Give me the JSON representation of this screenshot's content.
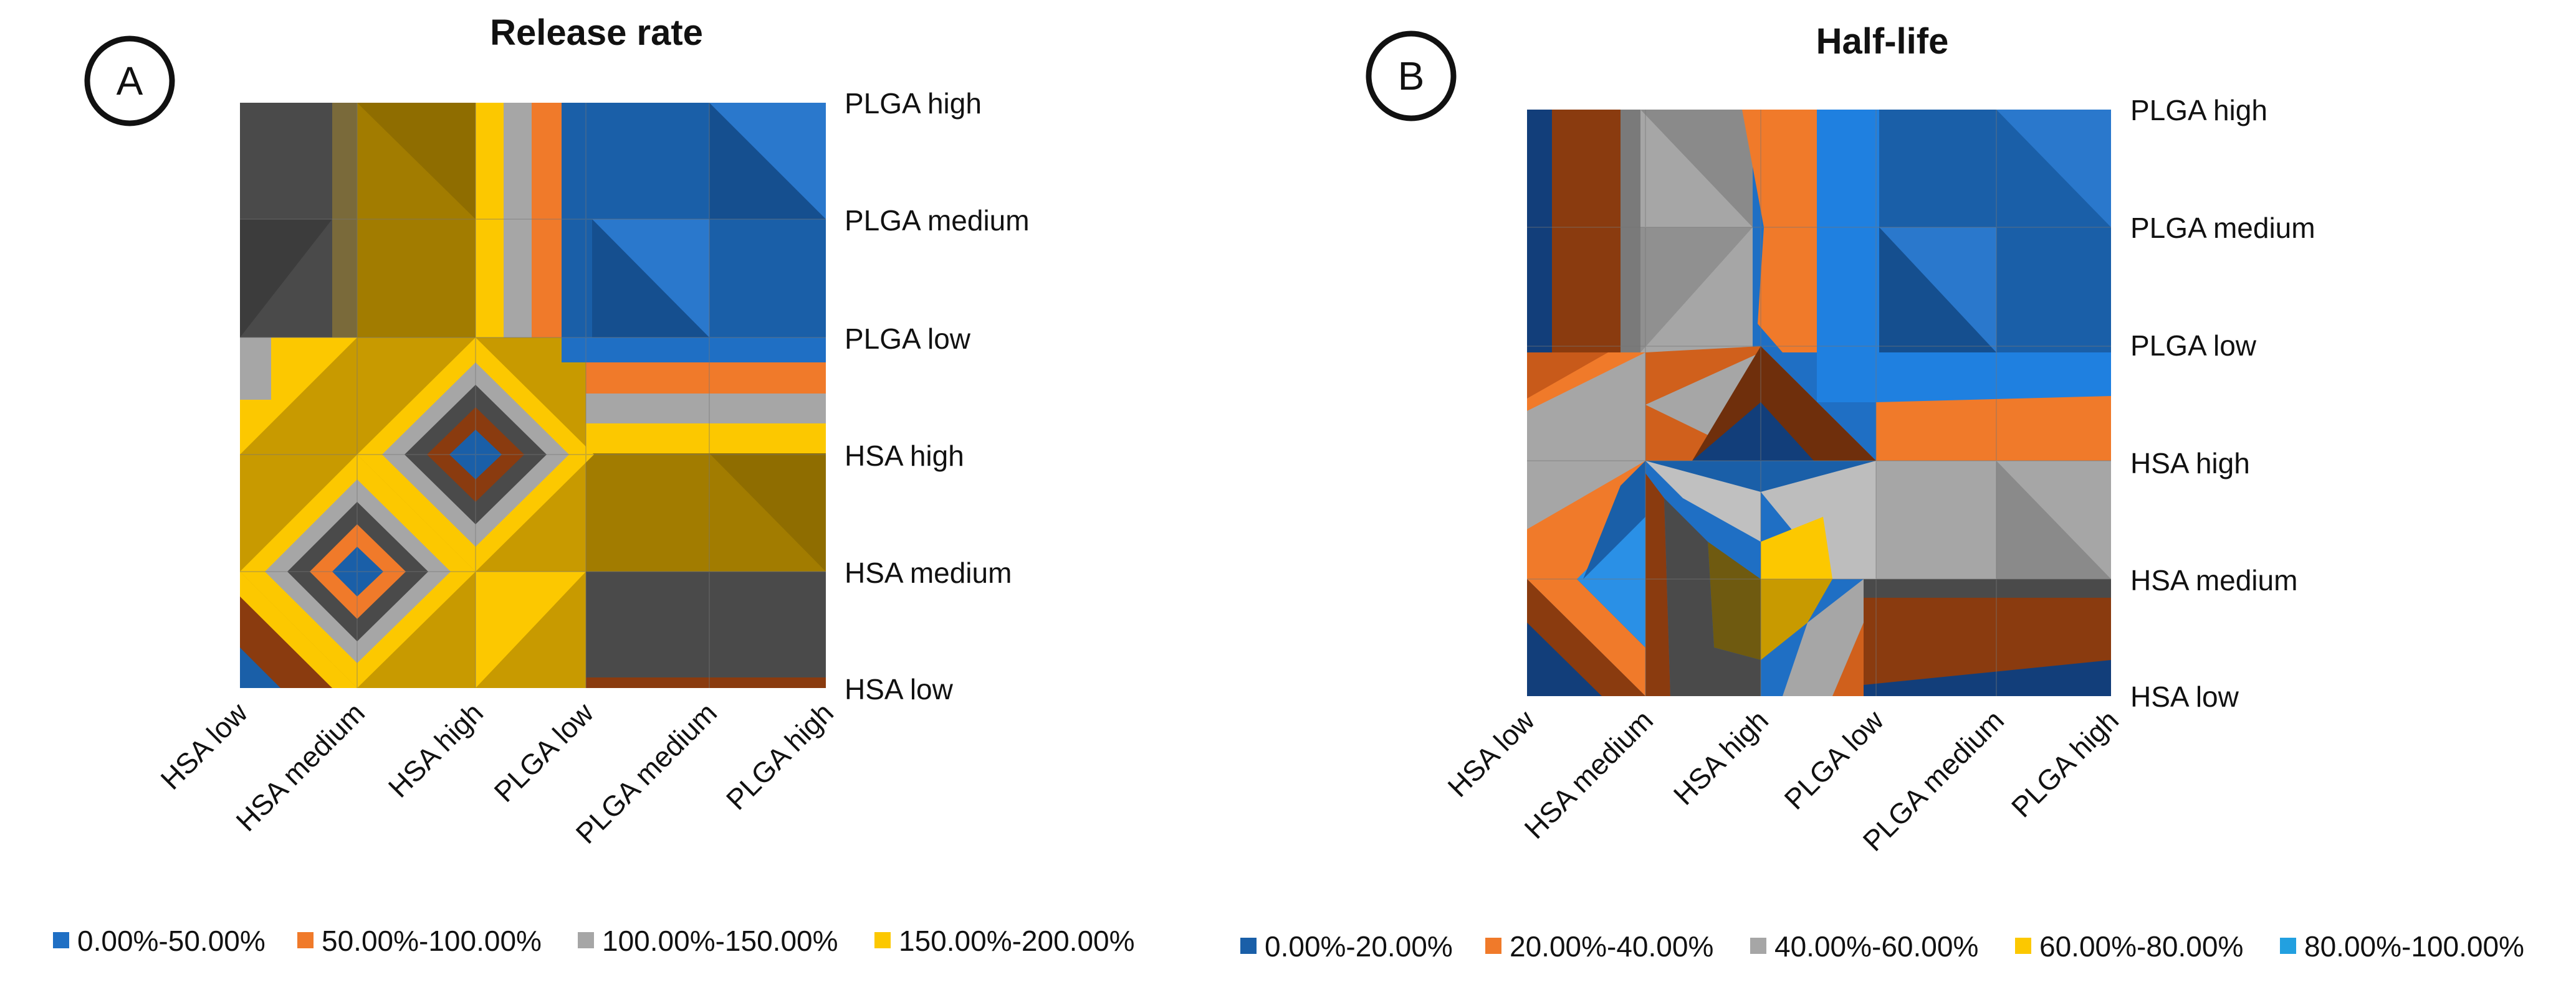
{
  "figure": {
    "label": "surface contour plots"
  },
  "colors": {
    "c0_50": "#1f6fc4",
    "c50_100": "#f07a2a",
    "c100_150": "#a6a6a6",
    "c150_200": "#fcc800",
    "dark_gold": "#a27c00",
    "mid_gold": "#c89a00",
    "dark_gray": "#4a4a4a",
    "dark_blue": "#123e7a",
    "dark_brown": "#8a3b0f",
    "light_blue": "#22a0e0",
    "text": "#111111",
    "gridline": "#777777"
  },
  "chart_data": [
    {
      "type": "heatmap",
      "panel": "A",
      "title": "Release rate",
      "x_categories": [
        "HSA low",
        "HSA medium",
        "HSA high",
        "PLGA low",
        "PLGA medium",
        "PLGA high"
      ],
      "y_categories": [
        "HSA low",
        "HSA medium",
        "HSA high",
        "PLGA low",
        "PLGA medium",
        "PLGA high"
      ],
      "bands": [
        "0.00%-50.00%",
        "50.00%-100.00%",
        "100.00%-150.00%",
        "150.00%-200.00%"
      ],
      "values_percent": [
        [
          0,
          160,
          180,
          100,
          140,
          140
        ],
        [
          130,
          0,
          180,
          160,
          140,
          140
        ],
        [
          180,
          140,
          0,
          140,
          120,
          120
        ],
        [
          130,
          140,
          120,
          90,
          20,
          20
        ],
        [
          140,
          140,
          140,
          20,
          10,
          10
        ],
        [
          140,
          140,
          140,
          20,
          10,
          10
        ]
      ]
    },
    {
      "type": "heatmap",
      "panel": "B",
      "title": "Half-life",
      "x_categories": [
        "HSA low",
        "HSA medium",
        "HSA high",
        "PLGA low",
        "PLGA medium",
        "PLGA high"
      ],
      "y_categories": [
        "HSA low",
        "HSA medium",
        "HSA high",
        "PLGA low",
        "PLGA medium",
        "PLGA high"
      ],
      "bands": [
        "0.00%-20.00%",
        "20.00%-40.00%",
        "40.00%-60.00%",
        "60.00%-80.00%",
        "80.00%-100.00%"
      ],
      "values_percent": [
        [
          10,
          85,
          50,
          40,
          20,
          20
        ],
        [
          85,
          30,
          60,
          55,
          50,
          50
        ],
        [
          30,
          40,
          5,
          45,
          30,
          30
        ],
        [
          30,
          40,
          35,
          20,
          10,
          10
        ],
        [
          30,
          50,
          40,
          10,
          10,
          10
        ],
        [
          20,
          50,
          40,
          10,
          5,
          5
        ]
      ]
    }
  ]
}
